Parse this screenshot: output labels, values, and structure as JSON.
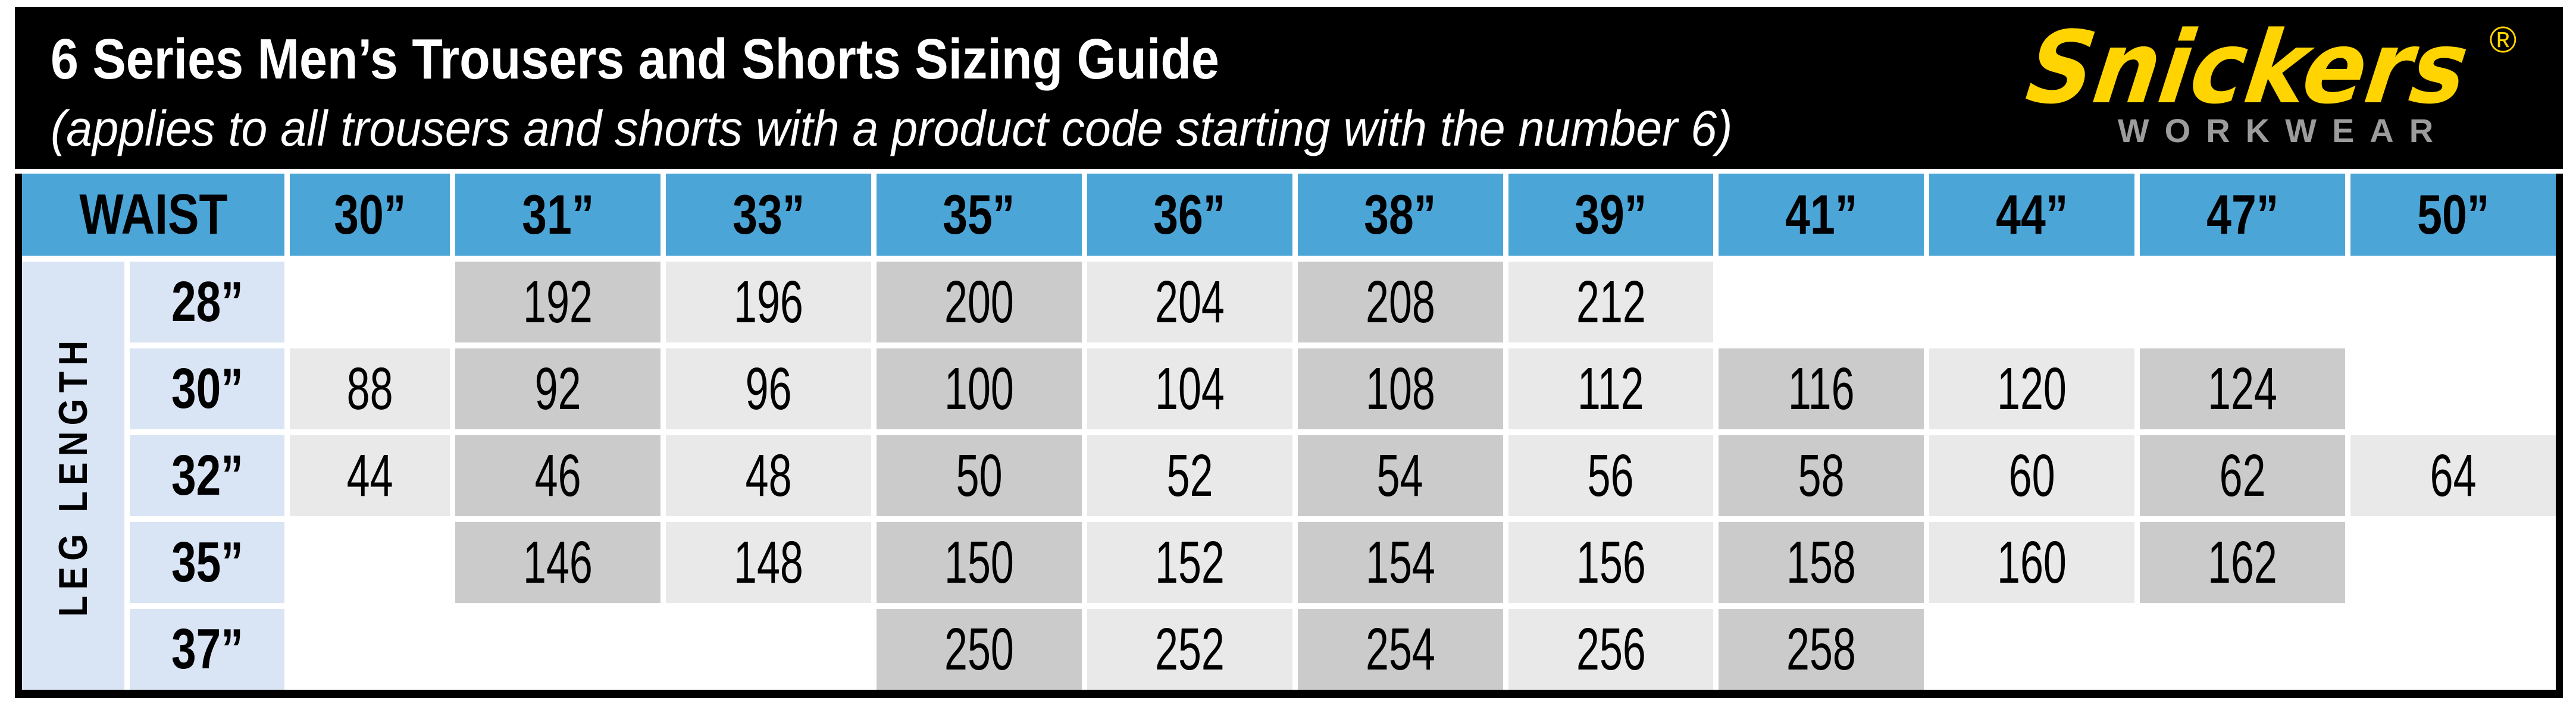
{
  "page": {
    "title": "6 Series Men’s Trousers and Shorts Sizing Guide",
    "subtitle": "(applies to all trousers and shorts with a product code starting with the number 6)"
  },
  "logo": {
    "brand": "Snickers",
    "registered_mark": "®",
    "tagline": "WORKWEAR"
  },
  "table": {
    "corner_label": "WAIST",
    "row_axis_label": "LEG LENGTH",
    "waist_sizes": [
      "30”",
      "31”",
      "33”",
      "35”",
      "36”",
      "38”",
      "39”",
      "41”",
      "44”",
      "47”",
      "50”"
    ],
    "rows": [
      {
        "leg": "28”",
        "values": [
          "",
          "192",
          "196",
          "200",
          "204",
          "208",
          "212",
          "",
          "",
          "",
          ""
        ]
      },
      {
        "leg": "30”",
        "values": [
          "88",
          "92",
          "96",
          "100",
          "104",
          "108",
          "112",
          "116",
          "120",
          "124",
          ""
        ]
      },
      {
        "leg": "32”",
        "values": [
          "44",
          "46",
          "48",
          "50",
          "52",
          "54",
          "56",
          "58",
          "60",
          "62",
          "64"
        ]
      },
      {
        "leg": "35”",
        "values": [
          "",
          "146",
          "148",
          "150",
          "152",
          "154",
          "156",
          "158",
          "160",
          "162",
          ""
        ]
      },
      {
        "leg": "37”",
        "values": [
          "",
          "",
          "",
          "250",
          "252",
          "254",
          "256",
          "258",
          "",
          "",
          ""
        ]
      }
    ]
  },
  "colors": {
    "header_blue": "#4BA5D7",
    "leg_light_blue": "#D9E4F4",
    "cell_dark_gray": "#CBCBCB",
    "cell_light_gray": "#E9E9E9",
    "bar_black": "#000000",
    "brand_yellow": "#FFD400",
    "tagline_gray": "#9C9C9C"
  },
  "chart_data": {
    "type": "table",
    "title": "6 Series Men’s Trousers and Shorts Sizing Guide",
    "subtitle": "(applies to all trousers and shorts with a product code starting with the number 6)",
    "col_axis": "WAIST",
    "row_axis": "LEG LENGTH",
    "columns": [
      "30”",
      "31”",
      "33”",
      "35”",
      "36”",
      "38”",
      "39”",
      "41”",
      "44”",
      "47”",
      "50”"
    ],
    "row_labels": [
      "28”",
      "30”",
      "32”",
      "35”",
      "37”"
    ],
    "matrix": [
      [
        null,
        192,
        196,
        200,
        204,
        208,
        212,
        null,
        null,
        null,
        null
      ],
      [
        88,
        92,
        96,
        100,
        104,
        108,
        112,
        116,
        120,
        124,
        null
      ],
      [
        44,
        46,
        48,
        50,
        52,
        54,
        56,
        58,
        60,
        62,
        64
      ],
      [
        null,
        146,
        148,
        150,
        152,
        154,
        156,
        158,
        160,
        162,
        null
      ],
      [
        null,
        null,
        null,
        250,
        252,
        254,
        256,
        258,
        null,
        null,
        null
      ]
    ],
    "shading_note": "filled cells alternate by column: light gray / dark gray; empty cells white",
    "grid": false,
    "legend_position": "none"
  }
}
